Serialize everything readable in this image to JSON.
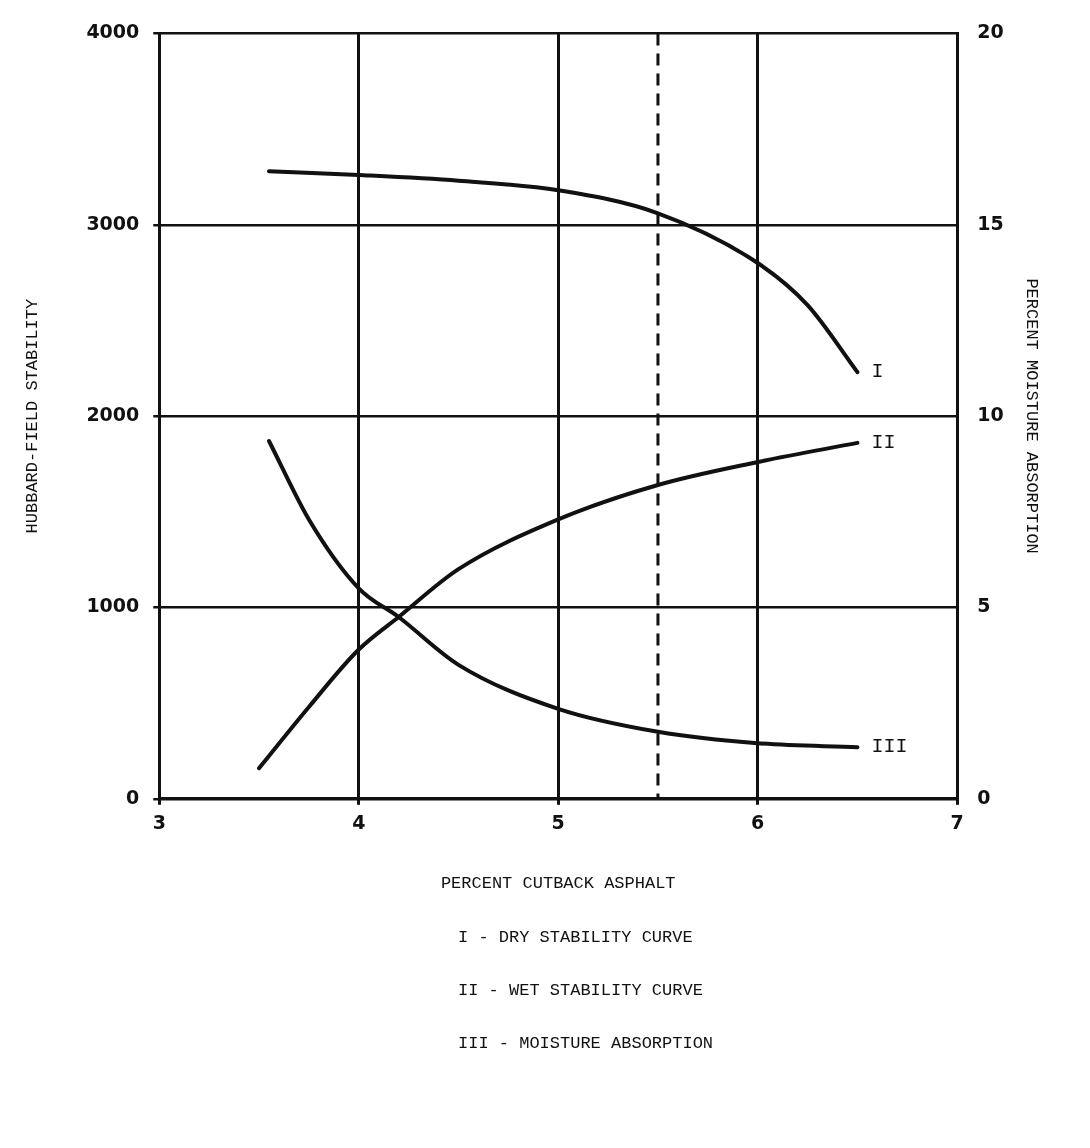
{
  "chart_data": {
    "type": "line",
    "xlabel": "PERCENT CUTBACK ASPHALT",
    "ylabel": "HUBBARD-FIELD STABILITY",
    "y2label": "PERCENT MOISTURE ABSORPTION",
    "xlim": [
      3,
      7
    ],
    "xticks": [
      3,
      4,
      5,
      6,
      7
    ],
    "ylim": [
      0,
      4000
    ],
    "yticks": [
      0,
      1000,
      2000,
      3000,
      4000
    ],
    "y2lim": [
      0,
      20
    ],
    "y2ticks": [
      0,
      5,
      10,
      15,
      20
    ],
    "grid": true,
    "legend": false,
    "marker": "none",
    "line_style": "solid",
    "series": [
      {
        "name": "I",
        "color": "#111111",
        "x": [
          3.55,
          4,
          4.5,
          5,
          5.5,
          6,
          6.25,
          6.5
        ],
        "values": [
          3280,
          3260,
          3230,
          3180,
          3060,
          2800,
          2580,
          2230
        ]
      },
      {
        "name": "II",
        "color": "#111111",
        "x": [
          3.5,
          3.75,
          4,
          4.2,
          4.5,
          5,
          5.5,
          6,
          6.5
        ],
        "values": [
          160,
          480,
          780,
          950,
          1200,
          1460,
          1640,
          1760,
          1860
        ]
      },
      {
        "name": "III",
        "color": "#111111",
        "axis": "y2",
        "x": [
          3.55,
          3.75,
          4,
          4.2,
          4.5,
          5,
          5.5,
          6,
          6.5
        ],
        "values": [
          9.35,
          7.3,
          5.5,
          4.75,
          3.5,
          2.35,
          1.75,
          1.45,
          1.35
        ]
      }
    ],
    "ref_lines": [
      {
        "axis": "x",
        "value": 5.5,
        "line_style": "dashed",
        "color": "#111111"
      }
    ],
    "annotations": [
      "I - DRY STABILITY CURVE",
      "II - WET STABILITY CURVE",
      "III - MOISTURE ABSORPTION"
    ]
  }
}
